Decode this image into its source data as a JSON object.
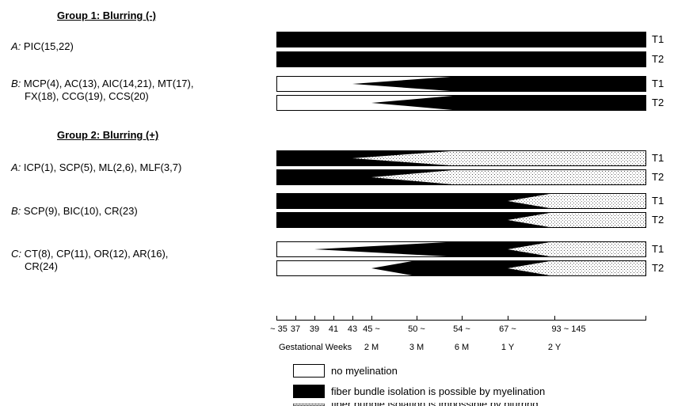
{
  "groups": [
    {
      "heading": "Group 1: Blurring (-)",
      "rows": [
        {
          "letter": "A:",
          "lines": [
            "PIC(15,22)"
          ]
        },
        {
          "letter": "B:",
          "lines": [
            "MCP(4), AC(13), AIC(14,21), MT(17),",
            "FX(18), CCG(19), CCS(20)"
          ]
        }
      ]
    },
    {
      "heading": "Group 2: Blurring (+)",
      "rows": [
        {
          "letter": "A:",
          "lines": [
            "ICP(1), SCP(5), ML(2,6), MLF(3,7)"
          ]
        },
        {
          "letter": "B:",
          "lines": [
            "SCP(9), BIC(10), CR(23)"
          ]
        },
        {
          "letter": "C:",
          "lines": [
            "CT(8), CP(11), OR(12), AR(16),",
            "CR(24)"
          ]
        }
      ]
    }
  ],
  "axis": {
    "tick_labels": [
      "~ 35",
      "37",
      "39",
      "41",
      "43",
      "45 ~",
      "50 ~",
      "54 ~",
      "67 ~",
      "93 ~ 145"
    ],
    "sub_labels": [
      "2 M",
      "3 M",
      "6 M",
      "1 Y",
      "2 Y"
    ],
    "axis_title": "Gestational Weeks"
  },
  "bar_labels": [
    "T1",
    "T2"
  ],
  "legend": [
    {
      "key": "none",
      "text": "no myelination"
    },
    {
      "key": "myelin",
      "text": "fiber bundle isolation is possible by myelination"
    },
    {
      "key": "blur",
      "text": "fiber bundle isolation is impossible by blurring"
    }
  ],
  "chart_data": {
    "type": "timeline",
    "stage_order": [
      "~ 35",
      "37",
      "39",
      "41",
      "43",
      "45 ~",
      "50 ~",
      "54 ~",
      "67 ~",
      "93 ~ 145"
    ],
    "states": [
      "no myelination",
      "myelination",
      "blurring"
    ],
    "bars": [
      {
        "group": "Group 1: Blurring (-)",
        "row": "A:",
        "label": "T1",
        "myelin_onset": "~ 35",
        "myelin_full": "~ 35",
        "blur_onset": null,
        "blur_full": null
      },
      {
        "group": "Group 1: Blurring (-)",
        "row": "A:",
        "label": "T2",
        "myelin_onset": "~ 35",
        "myelin_full": "~ 35",
        "blur_onset": null,
        "blur_full": null
      },
      {
        "group": "Group 1: Blurring (-)",
        "row": "B:",
        "label": "T1",
        "myelin_onset": "43",
        "myelin_full": "54 ~",
        "blur_onset": null,
        "blur_full": null
      },
      {
        "group": "Group 1: Blurring (-)",
        "row": "B:",
        "label": "T2",
        "myelin_onset": "45 ~",
        "myelin_full": "54 ~",
        "blur_onset": null,
        "blur_full": null
      },
      {
        "group": "Group 2: Blurring (+)",
        "row": "A:",
        "label": "T1",
        "myelin_onset": "~ 35",
        "myelin_full": "~ 35",
        "blur_onset": "43",
        "blur_full": "54 ~"
      },
      {
        "group": "Group 2: Blurring (+)",
        "row": "A:",
        "label": "T2",
        "myelin_onset": "~ 35",
        "myelin_full": "~ 35",
        "blur_onset": "45 ~",
        "blur_full": "54 ~"
      },
      {
        "group": "Group 2: Blurring (+)",
        "row": "B:",
        "label": "T1",
        "myelin_onset": "~ 35",
        "myelin_full": "~ 35",
        "blur_onset": "67 ~",
        "blur_full": "93 ~ 145"
      },
      {
        "group": "Group 2: Blurring (+)",
        "row": "B:",
        "label": "T2",
        "myelin_onset": "~ 35",
        "myelin_full": "~ 35",
        "blur_onset": "67 ~",
        "blur_full": "93 ~ 145"
      },
      {
        "group": "Group 2: Blurring (+)",
        "row": "C:",
        "label": "T1",
        "myelin_onset": "39",
        "myelin_full": "54 ~",
        "blur_onset": "67 ~",
        "blur_full": "93 ~ 145"
      },
      {
        "group": "Group 2: Blurring (+)",
        "row": "C:",
        "label": "T2",
        "myelin_onset": "45 ~",
        "myelin_full": "50 ~",
        "blur_onset": "67 ~",
        "blur_full": "93 ~ 145"
      }
    ]
  }
}
